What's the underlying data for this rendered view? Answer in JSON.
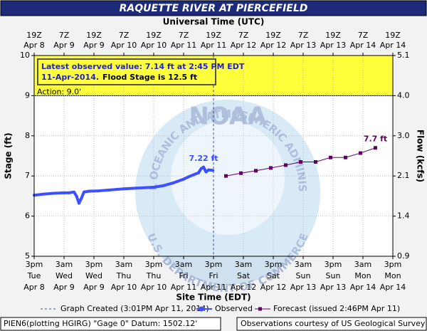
{
  "chart_data": {
    "type": "line",
    "title": "RAQUETTE RIVER AT PIERCEFIELD",
    "x2_title": "Universal Time (UTC)",
    "x_title": "Site Time (EDT)",
    "y_title": "Stage (ft)",
    "y2_title": "Flow (kcfs)",
    "xlim": [
      0,
      144
    ],
    "xticks": [
      {
        "value": 0,
        "label": [
          "3pm",
          "Tue",
          "Apr 8"
        ]
      },
      {
        "value": 12,
        "label": [
          "3am",
          "Wed",
          "Apr 9"
        ]
      },
      {
        "value": 24,
        "label": [
          "3pm",
          "Wed",
          "Apr 9"
        ]
      },
      {
        "value": 36,
        "label": [
          "3am",
          "Thu",
          "Apr 10"
        ]
      },
      {
        "value": 48,
        "label": [
          "3pm",
          "Thu",
          "Apr 10"
        ]
      },
      {
        "value": 60,
        "label": [
          "3am",
          "Fri",
          "Apr 11"
        ]
      },
      {
        "value": 72,
        "label": [
          "3pm",
          "Fri",
          "Apr 11"
        ]
      },
      {
        "value": 84,
        "label": [
          "3am",
          "Sat",
          "Apr 12"
        ]
      },
      {
        "value": 96,
        "label": [
          "3pm",
          "Sat",
          "Apr 12"
        ]
      },
      {
        "value": 108,
        "label": [
          "3am",
          "Sun",
          "Apr 13"
        ]
      },
      {
        "value": 120,
        "label": [
          "3pm",
          "Sun",
          "Apr 13"
        ]
      },
      {
        "value": 132,
        "label": [
          "3am",
          "Mon",
          "Apr 14"
        ]
      },
      {
        "value": 144,
        "label": [
          "3pm",
          "Mon",
          "Apr 14"
        ]
      }
    ],
    "x2ticks": [
      {
        "value": 0,
        "label": [
          "19Z",
          "Apr 8"
        ]
      },
      {
        "value": 12,
        "label": [
          "7Z",
          "Apr 9"
        ]
      },
      {
        "value": 24,
        "label": [
          "19Z",
          "Apr 9"
        ]
      },
      {
        "value": 36,
        "label": [
          "7Z",
          "Apr 10"
        ]
      },
      {
        "value": 48,
        "label": [
          "19Z",
          "Apr 10"
        ]
      },
      {
        "value": 60,
        "label": [
          "7Z",
          "Apr 11"
        ]
      },
      {
        "value": 72,
        "label": [
          "19Z",
          "Apr 11"
        ]
      },
      {
        "value": 84,
        "label": [
          "7Z",
          "Apr 12"
        ]
      },
      {
        "value": 96,
        "label": [
          "19Z",
          "Apr 12"
        ]
      },
      {
        "value": 108,
        "label": [
          "7Z",
          "Apr 13"
        ]
      },
      {
        "value": 120,
        "label": [
          "19Z",
          "Apr 13"
        ]
      },
      {
        "value": 132,
        "label": [
          "7Z",
          "Apr 14"
        ]
      },
      {
        "value": 144,
        "label": [
          "19Z",
          "Apr 14"
        ]
      }
    ],
    "ylim": [
      5,
      10
    ],
    "yticks": [
      5,
      6,
      7,
      8,
      9,
      10
    ],
    "y2ticks": [
      0.9,
      1.4,
      2.1,
      {
        "value": 3,
        "label": "3.0"
      },
      {
        "value": 4,
        "label": "4.0"
      },
      5.1
    ],
    "y2_tick_stages": [
      5,
      6,
      7,
      8,
      9,
      10
    ],
    "grid": true,
    "action_stage": 9,
    "action_label": "Action: 9.0'",
    "action_color": "#ffff3c",
    "info_lines": [
      "Latest observed value: 7.14 ft at 2:45 PM EDT",
      "11-Apr-2014.",
      "Flood Stage is 12.5 ft"
    ],
    "graph_created_x": 72,
    "graph_created_label": "Graph Created (3:01PM Apr 11, 2014)",
    "series": [
      {
        "name": "Observed",
        "color": "#3c50ff",
        "x": [
          0,
          4,
          8,
          12,
          14,
          16,
          17,
          18,
          19,
          20,
          22,
          26,
          30,
          36,
          42,
          48,
          52,
          56,
          60,
          62,
          64,
          66,
          67,
          68,
          69,
          70,
          71.75
        ],
        "values": [
          6.52,
          6.55,
          6.57,
          6.58,
          6.58,
          6.6,
          6.5,
          6.32,
          6.45,
          6.6,
          6.62,
          6.63,
          6.65,
          6.68,
          6.7,
          6.72,
          6.76,
          6.83,
          6.92,
          6.98,
          7.03,
          7.08,
          7.18,
          7.22,
          7.1,
          7.15,
          7.14
        ],
        "value_labels": [
          null,
          null,
          null,
          null,
          null,
          null,
          null,
          null,
          null,
          null,
          null,
          null,
          null,
          null,
          null,
          null,
          null,
          null,
          null,
          null,
          null,
          null,
          null,
          "7.22 ft",
          null,
          null,
          null
        ]
      },
      {
        "name": "Forecast (issued 2:46PM Apr 11)",
        "color": "#660066",
        "x": [
          77,
          83,
          89,
          95,
          101,
          107,
          113,
          119,
          125,
          131,
          137
        ],
        "values": [
          7.0,
          7.07,
          7.13,
          7.2,
          7.27,
          7.35,
          7.35,
          7.46,
          7.46,
          7.57,
          7.7
        ],
        "value_labels": [
          null,
          null,
          null,
          null,
          null,
          null,
          null,
          null,
          null,
          null,
          "7.7 ft"
        ]
      }
    ],
    "watermark": {
      "center": "NOAA",
      "top": "NATIONAL OCEANIC AND ATMOSPHERIC ADMINISTRATION",
      "bottom": "U.S. DEPARTMENT OF COMMERCE"
    },
    "footer_left": "PIEN6(plotting HGIRG) \"Gage 0\" Datum: 1502.12'",
    "footer_right": "Observations courtesy of US Geological Survey"
  }
}
